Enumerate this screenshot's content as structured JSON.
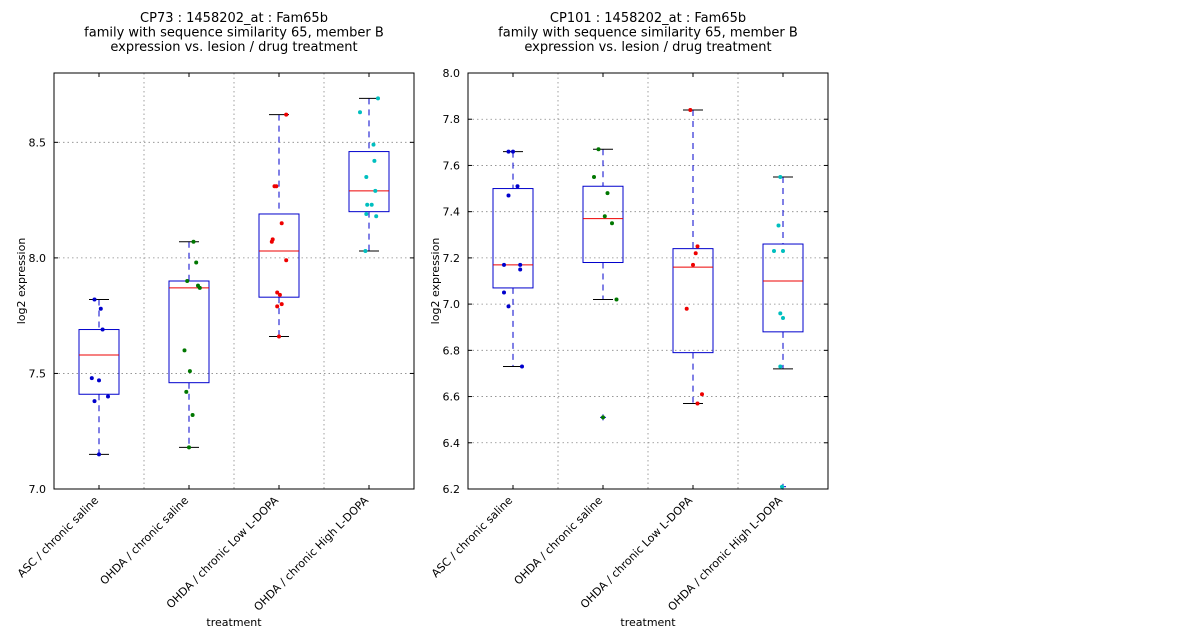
{
  "chart_data": [
    {
      "type": "box",
      "title_lines": [
        "CP73 : 1458202_at : Fam65b",
        "family with sequence similarity 65, member B",
        "expression vs. lesion / drug treatment"
      ],
      "xlabel": "treatment",
      "ylabel": "log2 expression",
      "ylim": [
        7.0,
        8.8
      ],
      "yticks": [
        7.0,
        7.5,
        8.0,
        8.5
      ],
      "ytick_labels": [
        "7.0",
        "7.5",
        "8.0",
        "8.5"
      ],
      "grid": true,
      "categories": [
        "ASC / chronic saline",
        "OHDA / chronic saline",
        "OHDA / chronic Low L-DOPA",
        "OHDA / chronic High L-DOPA"
      ],
      "boxes": [
        {
          "whislo": 7.15,
          "q1": 7.41,
          "med": 7.58,
          "q3": 7.69,
          "whishi": 7.82,
          "fliers": []
        },
        {
          "whislo": 7.18,
          "q1": 7.46,
          "med": 7.87,
          "q3": 7.9,
          "whishi": 8.07,
          "fliers": []
        },
        {
          "whislo": 7.66,
          "q1": 7.83,
          "med": 8.03,
          "q3": 8.19,
          "whishi": 8.62,
          "fliers": []
        },
        {
          "whislo": 8.03,
          "q1": 8.2,
          "med": 8.29,
          "q3": 8.46,
          "whishi": 8.69,
          "fliers": []
        }
      ],
      "points": [
        [
          [
            -0.05,
            7.82
          ],
          [
            0.02,
            7.78
          ],
          [
            0.04,
            7.69
          ],
          [
            -0.08,
            7.48
          ],
          [
            0.0,
            7.47
          ],
          [
            -0.05,
            7.38
          ],
          [
            0.1,
            7.4
          ],
          [
            0.0,
            7.15
          ]
        ],
        [
          [
            0.05,
            8.07
          ],
          [
            0.08,
            7.98
          ],
          [
            -0.02,
            7.9
          ],
          [
            0.1,
            7.88
          ],
          [
            0.12,
            7.87
          ],
          [
            -0.05,
            7.6
          ],
          [
            0.01,
            7.51
          ],
          [
            -0.03,
            7.42
          ],
          [
            0.04,
            7.32
          ],
          [
            0.0,
            7.18
          ]
        ],
        [
          [
            0.08,
            8.62
          ],
          [
            -0.05,
            8.31
          ],
          [
            -0.03,
            8.31
          ],
          [
            -0.07,
            8.08
          ],
          [
            -0.08,
            8.07
          ],
          [
            0.03,
            8.15
          ],
          [
            0.08,
            7.99
          ],
          [
            -0.02,
            7.85
          ],
          [
            0.01,
            7.84
          ],
          [
            -0.02,
            7.79
          ],
          [
            0.03,
            7.8
          ],
          [
            0.0,
            7.66
          ]
        ],
        [
          [
            0.1,
            8.69
          ],
          [
            -0.1,
            8.63
          ],
          [
            0.05,
            8.49
          ],
          [
            0.06,
            8.42
          ],
          [
            -0.03,
            8.35
          ],
          [
            0.07,
            8.29
          ],
          [
            -0.02,
            8.23
          ],
          [
            0.03,
            8.23
          ],
          [
            -0.03,
            8.19
          ],
          [
            0.08,
            8.18
          ],
          [
            -0.04,
            8.03
          ]
        ]
      ],
      "colors": [
        "#0000cc",
        "#007700",
        "#ee0000",
        "#00bfbf"
      ]
    },
    {
      "type": "box",
      "title_lines": [
        "CP101 : 1458202_at : Fam65b",
        "family with sequence similarity 65, member B",
        "expression vs. lesion / drug treatment"
      ],
      "xlabel": "treatment",
      "ylabel": "log2 expression",
      "ylim": [
        6.2,
        8.0
      ],
      "yticks": [
        6.2,
        6.4,
        6.6,
        6.8,
        7.0,
        7.2,
        7.4,
        7.6,
        7.8,
        8.0
      ],
      "ytick_labels": [
        "6.2",
        "6.4",
        "6.6",
        "6.8",
        "7.0",
        "7.2",
        "7.4",
        "7.6",
        "7.8",
        "8.0"
      ],
      "grid": true,
      "categories": [
        "ASC / chronic saline",
        "OHDA / chronic saline",
        "OHDA / chronic Low L-DOPA",
        "OHDA / chronic High L-DOPA"
      ],
      "boxes": [
        {
          "whislo": 6.73,
          "q1": 7.07,
          "med": 7.17,
          "q3": 7.5,
          "whishi": 7.66,
          "fliers": []
        },
        {
          "whislo": 7.02,
          "q1": 7.18,
          "med": 7.37,
          "q3": 7.51,
          "whishi": 7.67,
          "fliers": [
            6.51
          ]
        },
        {
          "whislo": 6.57,
          "q1": 6.79,
          "med": 7.16,
          "q3": 7.24,
          "whishi": 7.84,
          "fliers": []
        },
        {
          "whislo": 6.72,
          "q1": 6.88,
          "med": 7.1,
          "q3": 7.26,
          "whishi": 7.55,
          "fliers": [
            6.21
          ]
        }
      ],
      "points": [
        [
          [
            -0.05,
            7.66
          ],
          [
            0.0,
            7.66
          ],
          [
            0.05,
            7.51
          ],
          [
            -0.05,
            7.47
          ],
          [
            -0.1,
            7.17
          ],
          [
            0.08,
            7.17
          ],
          [
            0.08,
            7.15
          ],
          [
            -0.1,
            7.05
          ],
          [
            -0.05,
            6.99
          ],
          [
            0.1,
            6.73
          ]
        ],
        [
          [
            -0.05,
            7.67
          ],
          [
            -0.1,
            7.55
          ],
          [
            0.05,
            7.48
          ],
          [
            0.02,
            7.38
          ],
          [
            0.1,
            7.35
          ],
          [
            0.15,
            7.02
          ],
          [
            0.0,
            6.51
          ]
        ],
        [
          [
            -0.03,
            7.84
          ],
          [
            0.05,
            7.25
          ],
          [
            0.03,
            7.22
          ],
          [
            0.0,
            7.17
          ],
          [
            -0.07,
            6.98
          ],
          [
            0.1,
            6.61
          ],
          [
            0.05,
            6.57
          ]
        ],
        [
          [
            -0.03,
            7.55
          ],
          [
            -0.05,
            7.34
          ],
          [
            -0.1,
            7.23
          ],
          [
            0.0,
            7.23
          ],
          [
            -0.03,
            6.96
          ],
          [
            0.0,
            6.94
          ],
          [
            -0.03,
            6.73
          ],
          [
            -0.01,
            6.21
          ]
        ]
      ],
      "colors": [
        "#0000cc",
        "#007700",
        "#ee0000",
        "#00bfbf"
      ]
    }
  ]
}
